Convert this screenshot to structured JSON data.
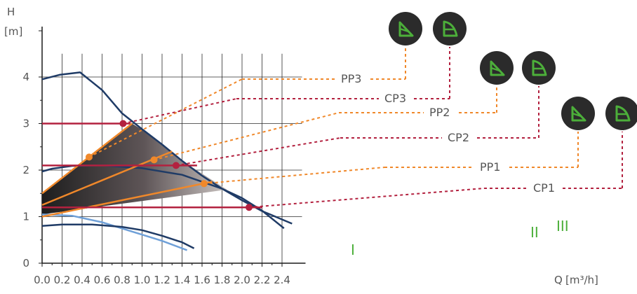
{
  "chart_data": {
    "type": "line",
    "axes": {
      "y_title": "H",
      "y_unit": "[m]",
      "x_title": "Q",
      "x_unit": "[m³/h]",
      "xlim": [
        0,
        2.6
      ],
      "ylim": [
        0,
        4.5
      ],
      "x_ticks": [
        "0.0",
        "0.2",
        "0.4",
        "0.6",
        "0.8",
        "1.0",
        "1.2",
        "1.4",
        "1.6",
        "1.8",
        "2.0",
        "2.2",
        "2.4"
      ],
      "y_ticks": [
        "0",
        "1",
        "2",
        "3",
        "4"
      ],
      "grid": true
    },
    "max_curves": [
      {
        "label": "III",
        "color": "#1f3b66",
        "points": [
          [
            0,
            3.95
          ],
          [
            0.18,
            4.05
          ],
          [
            0.38,
            4.1
          ],
          [
            0.6,
            3.72
          ],
          [
            0.8,
            3.22
          ],
          [
            1.0,
            2.88
          ],
          [
            1.2,
            2.55
          ],
          [
            1.4,
            2.2
          ],
          [
            1.6,
            1.88
          ],
          [
            1.8,
            1.6
          ],
          [
            2.0,
            1.35
          ],
          [
            2.2,
            1.12
          ],
          [
            2.4,
            0.94
          ],
          [
            2.5,
            0.85
          ]
        ]
      },
      {
        "label": "II",
        "color": "#1f3b66",
        "points": [
          [
            0,
            1.97
          ],
          [
            0.1,
            2.03
          ],
          [
            0.3,
            2.09
          ],
          [
            0.6,
            2.1
          ],
          [
            1.0,
            2.04
          ],
          [
            1.4,
            1.9
          ],
          [
            1.8,
            1.6
          ],
          [
            2.0,
            1.4
          ],
          [
            2.2,
            1.13
          ],
          [
            2.42,
            0.75
          ]
        ]
      },
      {
        "label": "I",
        "color": "#1f3b66",
        "points": [
          [
            0,
            0.8
          ],
          [
            0.2,
            0.83
          ],
          [
            0.5,
            0.83
          ],
          [
            0.8,
            0.78
          ],
          [
            1.0,
            0.71
          ],
          [
            1.2,
            0.59
          ],
          [
            1.4,
            0.45
          ],
          [
            1.52,
            0.32
          ]
        ]
      }
    ],
    "light_curve": {
      "color": "#6fa0d8",
      "points": [
        [
          0,
          1.05
        ],
        [
          0.3,
          1.02
        ],
        [
          0.6,
          0.88
        ],
        [
          0.9,
          0.68
        ],
        [
          1.2,
          0.48
        ],
        [
          1.45,
          0.28
        ]
      ]
    },
    "pp_lines": [
      {
        "name": "PP3",
        "color": "#f0882a",
        "points": [
          [
            0,
            1.5
          ],
          [
            0.9,
            3.0
          ]
        ]
      },
      {
        "name": "PP2",
        "color": "#f0882a",
        "points": [
          [
            0,
            1.25
          ],
          [
            1.3,
            2.4
          ]
        ]
      },
      {
        "name": "PP1",
        "color": "#f0882a",
        "points": [
          [
            0,
            1.0
          ],
          [
            1.7,
            1.75
          ]
        ]
      }
    ],
    "cp_lines": [
      {
        "name": "CP3",
        "color": "#b3213f",
        "h": 3.0,
        "x_end": 0.88
      },
      {
        "name": "CP2",
        "color": "#b3213f",
        "h": 2.1,
        "x_end": 1.55
      },
      {
        "name": "CP1",
        "color": "#b3213f",
        "h": 1.2,
        "x_end": 2.2
      }
    ],
    "shaded_region": {
      "points": [
        [
          0,
          1.5
        ],
        [
          0.9,
          3.0
        ],
        [
          1.05,
          2.8
        ],
        [
          1.4,
          2.2
        ],
        [
          1.85,
          1.58
        ],
        [
          0,
          1.05
        ]
      ]
    },
    "markers": [
      {
        "series": "CP3",
        "x": 0.81,
        "y": 3.0,
        "color": "#b3213f"
      },
      {
        "series": "PP3",
        "x": 0.47,
        "y": 2.28,
        "color": "#f0882a"
      },
      {
        "series": "PP2",
        "x": 1.12,
        "y": 2.22,
        "color": "#f0882a"
      },
      {
        "series": "CP2",
        "x": 1.34,
        "y": 2.1,
        "color": "#b3213f"
      },
      {
        "series": "PP1",
        "x": 1.62,
        "y": 1.71,
        "color": "#f0882a"
      },
      {
        "series": "CP1",
        "x": 2.07,
        "y": 1.2,
        "color": "#b3213f"
      }
    ],
    "callouts": [
      {
        "label": "PP3",
        "color": "#f0882a",
        "icon": "pp-mode-icon",
        "target": "PP3"
      },
      {
        "label": "CP3",
        "color": "#b3213f",
        "icon": "cp-mode-icon",
        "target": "CP3"
      },
      {
        "label": "PP2",
        "color": "#f0882a",
        "icon": "pp-mode-icon",
        "target": "PP2"
      },
      {
        "label": "CP2",
        "color": "#b3213f",
        "icon": "cp-mode-icon",
        "target": "CP2"
      },
      {
        "label": "PP1",
        "color": "#f0882a",
        "icon": "pp-mode-icon",
        "target": "PP1"
      },
      {
        "label": "CP1",
        "color": "#b3213f",
        "icon": "cp-mode-icon",
        "target": "CP1"
      }
    ],
    "speed_labels": [
      "III",
      "II",
      "I"
    ],
    "speed_label_color": "#4caf3a",
    "icon_bg": "#2b2b2b",
    "icon_fg": "#4caf3a"
  }
}
